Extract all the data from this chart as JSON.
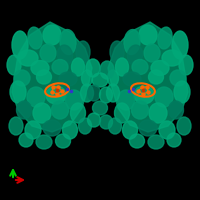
{
  "background_color": "#000000",
  "figure_size": [
    2.0,
    2.0
  ],
  "dpi": 100,
  "protein_color": "#00A878",
  "protein_color2": "#009970",
  "protein_color3": "#007A5E",
  "ligand_color": "#FF6600",
  "ligand_color2": "#CC3300",
  "axis_x_color": "#CC0000",
  "axis_y_color": "#00CC00"
}
